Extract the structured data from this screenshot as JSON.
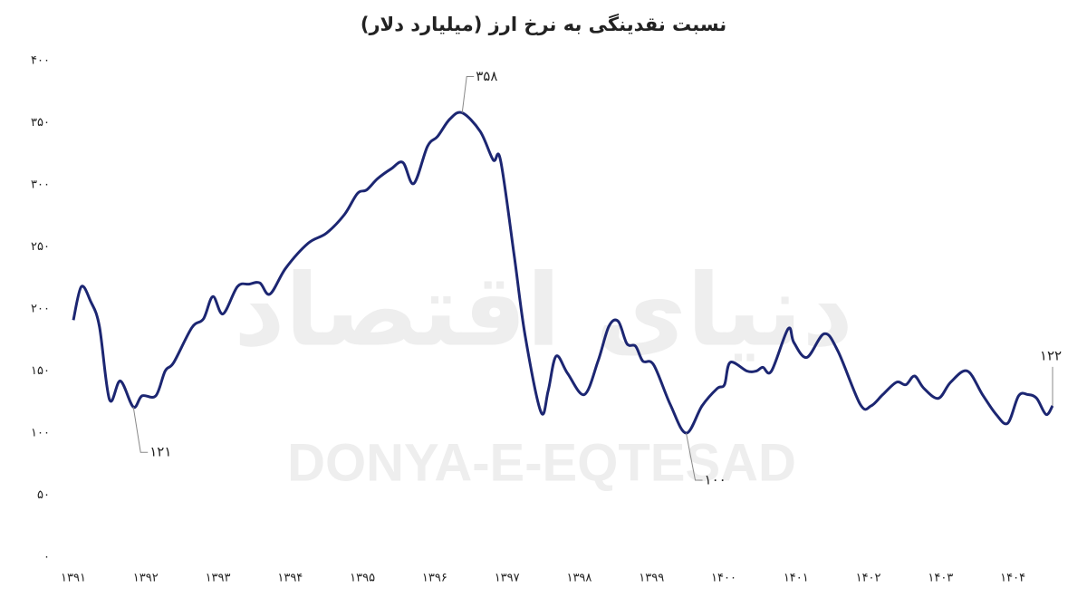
{
  "chart_data": {
    "type": "line",
    "title": "نسبت نقدینگی به نرخ ارز (میلیارد دلار)",
    "watermark": "DONYA-E-EQTESAD",
    "watermark_logo": "دنیای اقتصاد",
    "x": [
      1391.0,
      1391.11,
      1391.24,
      1391.36,
      1391.5,
      1391.65,
      1391.83,
      1391.95,
      1392.14,
      1392.27,
      1392.39,
      1392.64,
      1392.8,
      1392.93,
      1393.07,
      1393.27,
      1393.43,
      1393.58,
      1393.72,
      1393.94,
      1394.25,
      1394.5,
      1394.75,
      1394.93,
      1395.06,
      1395.21,
      1395.4,
      1395.56,
      1395.71,
      1395.9,
      1396.04,
      1396.21,
      1396.38,
      1396.63,
      1396.81,
      1396.91,
      1397.1,
      1397.25,
      1397.47,
      1397.57,
      1397.68,
      1397.84,
      1398.07,
      1398.26,
      1398.41,
      1398.54,
      1398.66,
      1398.78,
      1398.88,
      1399.03,
      1399.26,
      1399.48,
      1399.7,
      1399.91,
      1400.01,
      1400.09,
      1400.32,
      1400.45,
      1400.54,
      1400.66,
      1400.89,
      1400.97,
      1401.15,
      1401.39,
      1401.58,
      1401.89,
      1402.04,
      1402.2,
      1402.39,
      1402.52,
      1402.64,
      1402.77,
      1402.97,
      1403.14,
      1403.37,
      1403.58,
      1403.77,
      1403.93,
      1404.08,
      1404.21,
      1404.33,
      1404.46,
      1404.55
    ],
    "series": [
      {
        "color": "#1c2672",
        "values": [
          191,
          218,
          206,
          186,
          127,
          142,
          121,
          130,
          130,
          150,
          157,
          185,
          192,
          210,
          196,
          218,
          220,
          221,
          212,
          233,
          253,
          261,
          276,
          293,
          296,
          305,
          313,
          318,
          301,
          331,
          339,
          353,
          358,
          343,
          320,
          320,
          243,
          179,
          117,
          134,
          162,
          148,
          131,
          158,
          186,
          190,
          172,
          170,
          158,
          155,
          123,
          100,
          122,
          136,
          139,
          157,
          150,
          150,
          153,
          150,
          184,
          173,
          161,
          180,
          166,
          123,
          122,
          131,
          141,
          139,
          146,
          136,
          128,
          141,
          150,
          131,
          115,
          108,
          130,
          131,
          128,
          115,
          122
        ],
        "value_labels": [
          null,
          null,
          null,
          null,
          null,
          null,
          "۱۲۱",
          null,
          null,
          null,
          null,
          null,
          null,
          null,
          null,
          null,
          null,
          null,
          null,
          null,
          null,
          null,
          null,
          null,
          null,
          null,
          null,
          null,
          null,
          null,
          null,
          null,
          "۳۵۸",
          null,
          null,
          null,
          null,
          null,
          null,
          null,
          null,
          null,
          null,
          null,
          null,
          null,
          null,
          null,
          null,
          null,
          null,
          "۱۰۰",
          null,
          null,
          null,
          null,
          null,
          null,
          null,
          null,
          null,
          null,
          null,
          null,
          null,
          null,
          null,
          null,
          null,
          null,
          null,
          null,
          null,
          null,
          null,
          null,
          null,
          null,
          null,
          null,
          null,
          null,
          "۱۲۲"
        ]
      }
    ],
    "xlim": [
      1391,
      1404.55
    ],
    "xticks": [
      {
        "value": 1391,
        "label": "۱۳۹۱"
      },
      {
        "value": 1392,
        "label": "۱۳۹۲"
      },
      {
        "value": 1393,
        "label": "۱۳۹۳"
      },
      {
        "value": 1394,
        "label": "۱۳۹۴"
      },
      {
        "value": 1395,
        "label": "۱۳۹۵"
      },
      {
        "value": 1396,
        "label": "۱۳۹۶"
      },
      {
        "value": 1397,
        "label": "۱۳۹۷"
      },
      {
        "value": 1398,
        "label": "۱۳۹۸"
      },
      {
        "value": 1399,
        "label": "۱۳۹۹"
      },
      {
        "value": 1400,
        "label": "۱۴۰۰"
      },
      {
        "value": 1401,
        "label": "۱۴۰۱"
      },
      {
        "value": 1402,
        "label": "۱۴۰۲"
      },
      {
        "value": 1403,
        "label": "۱۴۰۳"
      },
      {
        "value": 1404,
        "label": "۱۴۰۴"
      }
    ],
    "ylim": [
      0,
      400
    ],
    "yticks": [
      {
        "value": 0,
        "label": "۰"
      },
      {
        "value": 50,
        "label": "۵۰"
      },
      {
        "value": 100,
        "label": "۱۰۰"
      },
      {
        "value": 150,
        "label": "۱۵۰"
      },
      {
        "value": 200,
        "label": "۲۰۰"
      },
      {
        "value": 250,
        "label": "۲۵۰"
      },
      {
        "value": 300,
        "label": "۳۰۰"
      },
      {
        "value": 350,
        "label": "۳۵۰"
      },
      {
        "value": 400,
        "label": "۴۰۰"
      }
    ],
    "grid": false
  }
}
